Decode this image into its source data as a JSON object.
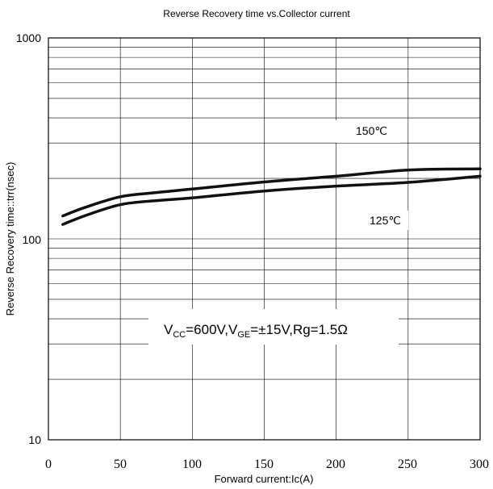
{
  "chart_data": {
    "type": "line",
    "title": "Reverse Recovery time vs.Collector current",
    "xlabel": "Forward current:Ic(A)",
    "ylabel": "Reverse Recovery time::trr(nsec)",
    "xlim": [
      0,
      300
    ],
    "ylim": [
      10,
      1000
    ],
    "yscale": "log",
    "grid": true,
    "x_ticks": [
      "0",
      "50",
      "100",
      "150",
      "200",
      "250",
      "300"
    ],
    "y_ticks": [
      "10",
      "100",
      "1000"
    ],
    "annotation": {
      "vcc_prefix": "V",
      "vcc_sub": "CC",
      "vcc_value": "=600V,V",
      "vge_sub": "GE",
      "rest": "=±15V,Rg=1.5Ω"
    },
    "series": [
      {
        "name": "150℃",
        "x": [
          10,
          25,
          50,
          75,
          100,
          150,
          200,
          250,
          300
        ],
        "values": [
          130,
          143,
          162,
          170,
          177,
          192,
          205,
          220,
          223
        ]
      },
      {
        "name": "125℃",
        "x": [
          10,
          25,
          50,
          75,
          100,
          150,
          200,
          250,
          300
        ],
        "values": [
          118,
          130,
          148,
          155,
          160,
          173,
          183,
          191,
          205
        ]
      }
    ]
  }
}
